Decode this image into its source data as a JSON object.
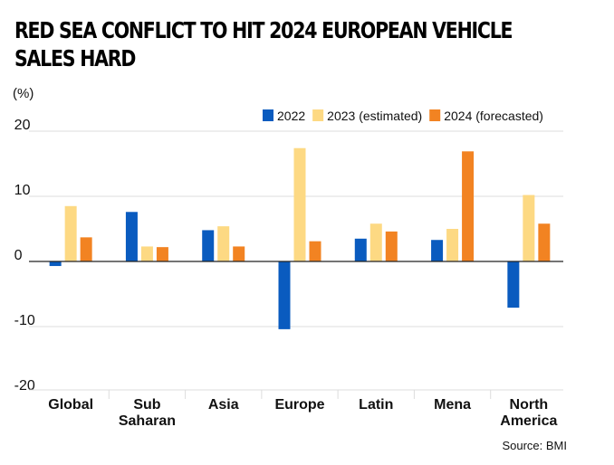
{
  "chart_data": {
    "type": "bar",
    "title": "RED SEA CONFLICT TO HIT 2024 EUROPEAN VEHICLE SALES HARD",
    "ylabel": "(%)",
    "xlabel": "",
    "ylim": [
      -20,
      20
    ],
    "yticks": [
      20,
      10,
      0,
      -10,
      -20
    ],
    "categories": [
      "Global",
      "Sub Saharan",
      "Asia",
      "Europe",
      "Latin",
      "Mena",
      "North America"
    ],
    "category_lines": [
      [
        "Global"
      ],
      [
        "Sub",
        "Saharan"
      ],
      [
        "Asia"
      ],
      [
        "Europe"
      ],
      [
        "Latin"
      ],
      [
        "Mena"
      ],
      [
        "North",
        "America"
      ]
    ],
    "series": [
      {
        "name": "2022",
        "color": "#0a5bbf",
        "values": [
          -0.7,
          7.6,
          4.8,
          -10.4,
          3.5,
          3.3,
          -7.1
        ]
      },
      {
        "name": "2023 (estimated)",
        "color": "#fdd983",
        "values": [
          8.5,
          2.3,
          5.4,
          17.4,
          5.8,
          5.0,
          10.2
        ]
      },
      {
        "name": "2024 (forecasted)",
        "color": "#f28322",
        "values": [
          3.7,
          2.2,
          2.3,
          3.1,
          4.6,
          16.9,
          5.8
        ]
      }
    ],
    "legend": "top-right",
    "grid": true,
    "source": "Source: BMI"
  }
}
